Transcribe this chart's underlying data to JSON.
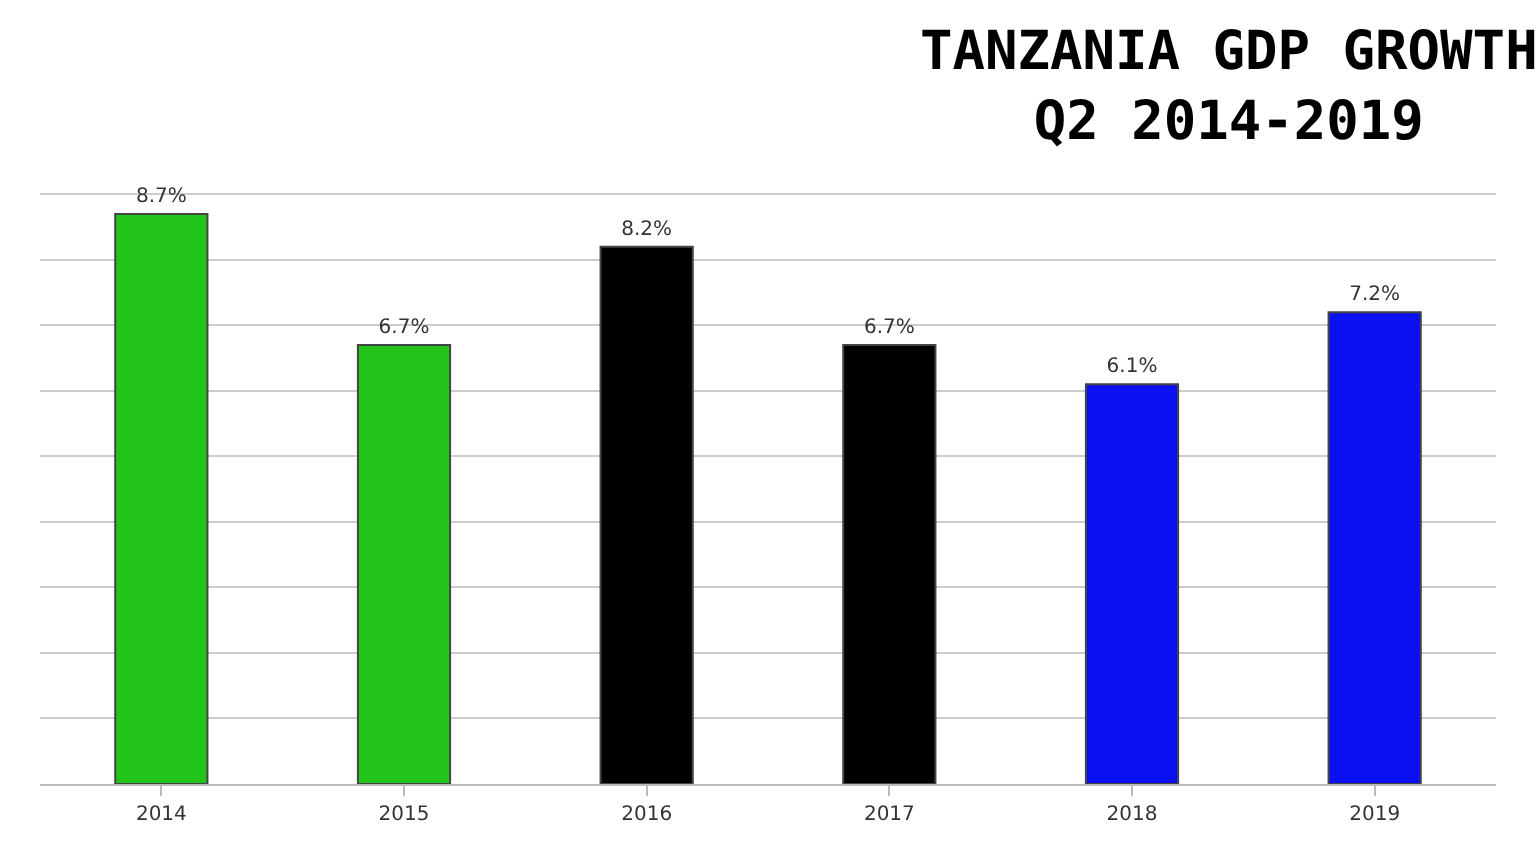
{
  "chart_data": {
    "type": "bar",
    "title": "TANZANIA GDP GROWTH\nQ2 2014-2019",
    "categories": [
      "2014",
      "2015",
      "2016",
      "2017",
      "2018",
      "2019"
    ],
    "values": [
      8.7,
      6.7,
      8.2,
      6.7,
      6.1,
      7.2
    ],
    "colors": [
      "#22c41a",
      "#22c41a",
      "#000000",
      "#000000",
      "#0a10f0",
      "#0a10f0"
    ],
    "value_labels": [
      "8.7%",
      "6.7%",
      "8.2%",
      "6.7%",
      "6.1%",
      "7.2%"
    ],
    "yticks": [
      {
        "value": 0,
        "label": null
      },
      {
        "value": 1,
        "label": null
      },
      {
        "value": 2,
        "label": null
      },
      {
        "value": 3,
        "label": null
      },
      {
        "value": 4,
        "label": null
      },
      {
        "value": 5,
        "label": null
      },
      {
        "value": 6,
        "label": null
      },
      {
        "value": 7,
        "label": null
      },
      {
        "value": 8,
        "label": null
      },
      {
        "value": 9,
        "label": null
      }
    ],
    "grid": "y",
    "tick_labels": "x",
    "legend": false
  }
}
